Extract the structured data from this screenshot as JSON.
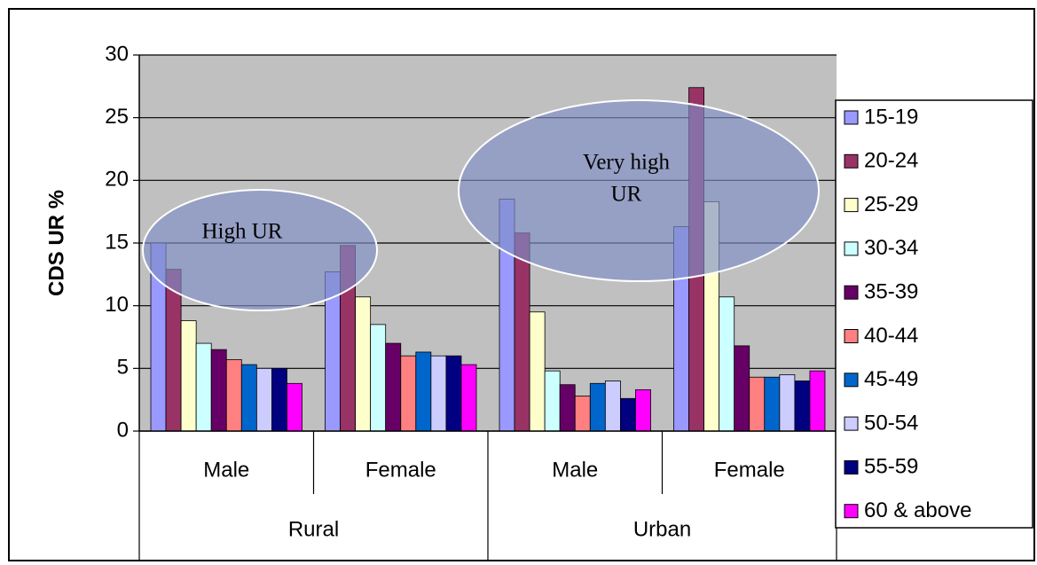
{
  "chart_data": {
    "type": "bar",
    "y_label": "CDS UR %",
    "categories": [
      "Male",
      "Female",
      "Male",
      "Female"
    ],
    "groups": [
      "Rural",
      "Urban"
    ],
    "ylim": [
      0,
      30
    ],
    "yticks": [
      0,
      5,
      10,
      15,
      20,
      25,
      30
    ],
    "grid": true,
    "legend": "right",
    "series": [
      {
        "name": "15-19",
        "color": "#9999ff",
        "values": [
          15.0,
          12.7,
          18.5,
          16.3
        ]
      },
      {
        "name": "20-24",
        "color": "#993366",
        "values": [
          12.9,
          14.8,
          15.8,
          27.4
        ]
      },
      {
        "name": "25-29",
        "color": "#ffffcc",
        "values": [
          8.8,
          10.7,
          9.5,
          18.3
        ]
      },
      {
        "name": "30-34",
        "color": "#ccffff",
        "values": [
          7.0,
          8.5,
          4.8,
          10.7
        ]
      },
      {
        "name": "35-39",
        "color": "#660066",
        "values": [
          6.5,
          7.0,
          3.7,
          6.8
        ]
      },
      {
        "name": "40-44",
        "color": "#ff8080",
        "values": [
          5.7,
          6.0,
          2.8,
          4.3
        ]
      },
      {
        "name": "45-49",
        "color": "#0066cc",
        "values": [
          5.3,
          6.3,
          3.8,
          4.3
        ]
      },
      {
        "name": "50-54",
        "color": "#ccccff",
        "values": [
          5.0,
          6.0,
          4.0,
          4.5
        ]
      },
      {
        "name": "55-59",
        "color": "#000080",
        "values": [
          5.0,
          6.0,
          2.6,
          4.0
        ]
      },
      {
        "name": "60 & above",
        "color": "#ff00ff",
        "values": [
          3.8,
          5.3,
          3.3,
          4.8
        ]
      }
    ],
    "annotations": [
      {
        "lines": [
          "High UR"
        ]
      },
      {
        "lines": [
          "Very high",
          "UR"
        ]
      }
    ]
  }
}
